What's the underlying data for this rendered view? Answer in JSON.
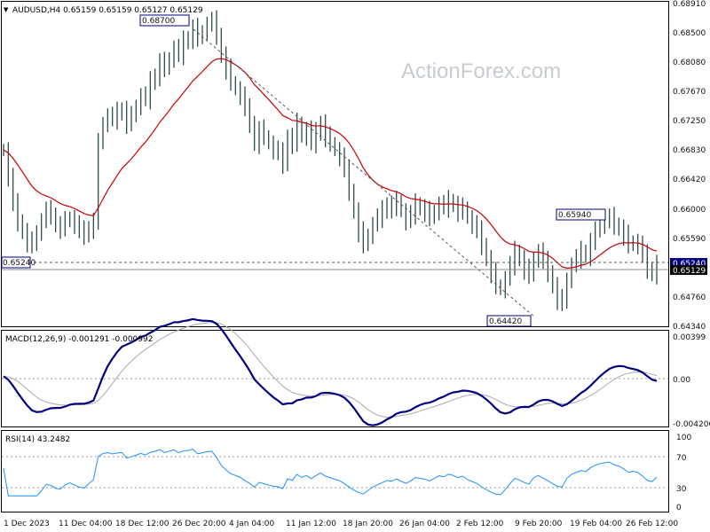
{
  "chart_data": [
    {
      "type": "candlestick",
      "title": "AUDUSD,H4  0.65159 0.65159 0.65127 0.65129",
      "watermark": "ActionForex.com",
      "y_ticks": [
        "0.68910",
        "0.68500",
        "0.68080",
        "0.67670",
        "0.67250",
        "0.66830",
        "0.66420",
        "0.66000",
        "0.65590",
        "0.65240",
        "0.65129",
        "0.64760",
        "0.64340"
      ],
      "ylim": [
        0.642,
        0.6896
      ],
      "x_ticks": [
        "1 Dec 2023",
        "11 Dec 04:00",
        "18 Dec 12:00",
        "26 Dec 20:00",
        "4 Jan 04:00",
        "11 Jan 12:00",
        "18 Jan 20:00",
        "26 Jan 04:00",
        "2 Feb 12:00",
        "9 Feb 20:00",
        "19 Feb 04:00",
        "26 Feb 12:00"
      ],
      "annotations": [
        "0.68700",
        "0.65940",
        "0.64420",
        "0.65240"
      ],
      "horizontal_lines": [
        {
          "value": 0.6524,
          "style": "dashed"
        },
        {
          "value": 0.65129,
          "style": "solid"
        }
      ],
      "trendline": [
        {
          "x": "26 Dec 20:00",
          "y": 0.687
        },
        {
          "x": "9 Feb 20:00",
          "y": 0.6442
        }
      ],
      "moving_average_color": "#cc0000",
      "bar_color": "#2f4f4f",
      "close_series": [
        0.668,
        0.664,
        0.66,
        0.6575,
        0.656,
        0.6545,
        0.654,
        0.656,
        0.6575,
        0.659,
        0.6585,
        0.657,
        0.6565,
        0.6575,
        0.658,
        0.657,
        0.656,
        0.6555,
        0.6565,
        0.6575,
        0.669,
        0.672,
        0.673,
        0.6725,
        0.6735,
        0.674,
        0.672,
        0.673,
        0.6745,
        0.676,
        0.6755,
        0.678,
        0.679,
        0.681,
        0.68,
        0.6815,
        0.683,
        0.682,
        0.684,
        0.6845,
        0.686,
        0.6845,
        0.6855,
        0.6865,
        0.687,
        0.685,
        0.682,
        0.68,
        0.678,
        0.677,
        0.676,
        0.674,
        0.672,
        0.669,
        0.671,
        0.67,
        0.669,
        0.668,
        0.6675,
        0.666,
        0.67,
        0.669,
        0.672,
        0.67,
        0.671,
        0.669,
        0.6705,
        0.672,
        0.67,
        0.669,
        0.668,
        0.667,
        0.665,
        0.662,
        0.659,
        0.656,
        0.654,
        0.6555,
        0.657,
        0.658,
        0.659,
        0.66,
        0.6595,
        0.6605,
        0.659,
        0.6575,
        0.6585,
        0.66,
        0.6595,
        0.659,
        0.658,
        0.659,
        0.66,
        0.6595,
        0.6605,
        0.66,
        0.659,
        0.6595,
        0.658,
        0.657,
        0.656,
        0.654,
        0.652,
        0.65,
        0.648,
        0.6475,
        0.649,
        0.651,
        0.653,
        0.652,
        0.6505,
        0.6495,
        0.652,
        0.653,
        0.6515,
        0.65,
        0.648,
        0.646,
        0.6455,
        0.649,
        0.651,
        0.652,
        0.653,
        0.6525,
        0.6545,
        0.656,
        0.657,
        0.6575,
        0.658,
        0.657,
        0.6565,
        0.6555,
        0.654,
        0.6545,
        0.654,
        0.6525,
        0.6505,
        0.6498,
        0.6513
      ]
    },
    {
      "type": "line",
      "title": "MACD(12,26,9) -0.001291 -0.000992",
      "y_ticks": [
        "0.00399",
        "0.00",
        "-0.004206"
      ],
      "ylim": [
        -0.0053,
        0.0048
      ],
      "colors": {
        "macd": "#000080",
        "signal": "#a9a9a9"
      }
    },
    {
      "type": "line",
      "title": "RSI(14) 43.2482",
      "y_ticks": [
        "100",
        "70",
        "30",
        "0"
      ],
      "ylim": [
        0,
        100
      ],
      "levels": [
        70,
        30
      ],
      "color": "#1e90ff"
    }
  ]
}
